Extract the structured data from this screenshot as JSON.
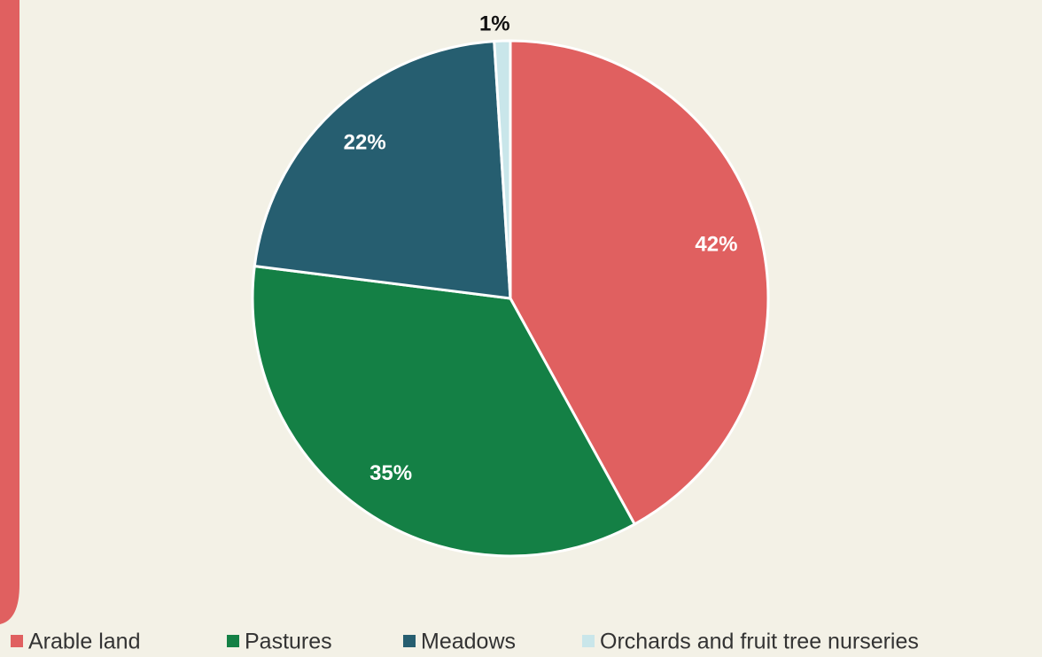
{
  "chart_data": {
    "type": "pie",
    "categories": [
      "Arable land",
      "Pastures",
      "Meadows",
      "Orchards and fruit tree nurseries"
    ],
    "values": [
      42,
      35,
      22,
      1
    ],
    "value_labels": [
      "42%",
      "35%",
      "22%",
      "1%"
    ],
    "colors": [
      "#e06060",
      "#148045",
      "#265e70",
      "#c9e6ea"
    ]
  }
}
